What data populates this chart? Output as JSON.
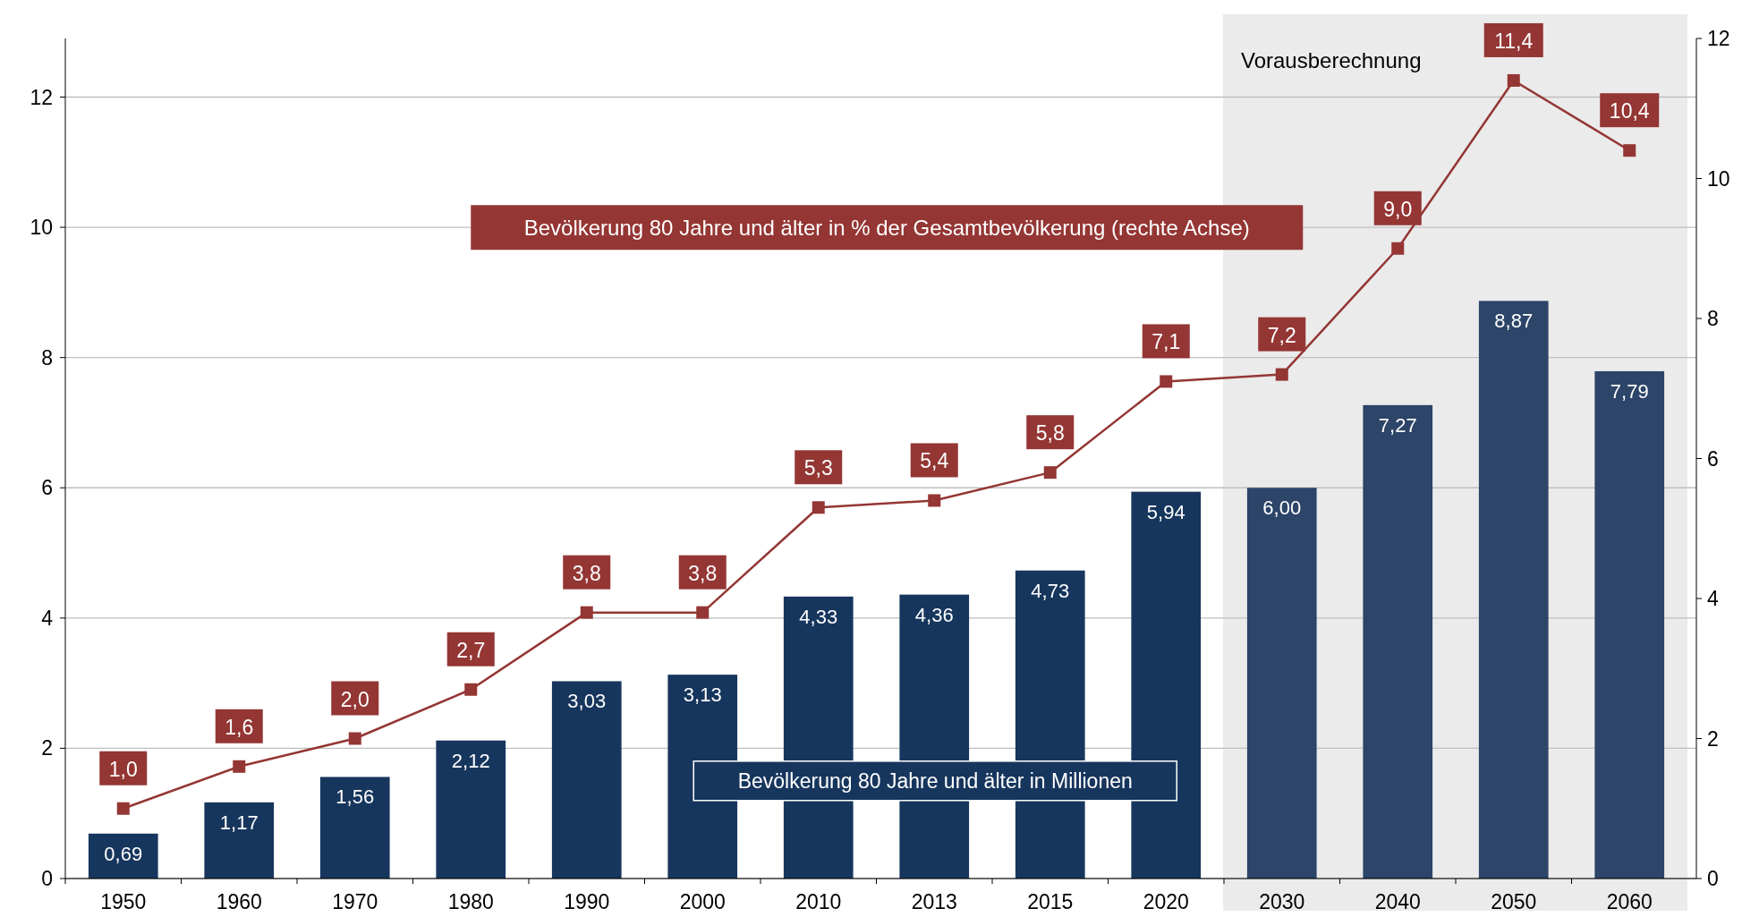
{
  "chart_data": {
    "type": "bar",
    "categories": [
      "1950",
      "1960",
      "1970",
      "1980",
      "1990",
      "2000",
      "2010",
      "2013",
      "2015",
      "2020",
      "2030",
      "2040",
      "2050",
      "2060"
    ],
    "series": [
      {
        "name": "Bevölkerung  80 Jahre und älter in Millionen",
        "colors": [
          "#17365d",
          "#17365d",
          "#17365d",
          "#17365d",
          "#17365d",
          "#17365d",
          "#17365d",
          "#17365d",
          "#17365d",
          "#17365d",
          "#2c4568",
          "#2c4568",
          "#2c4568",
          "#2c4568"
        ],
        "values": [
          0.69,
          1.17,
          1.56,
          2.12,
          3.03,
          3.13,
          4.33,
          4.36,
          4.73,
          5.94,
          6.0,
          7.27,
          8.87,
          7.79
        ],
        "value_labels": [
          "0,69",
          "1,17",
          "1,56",
          "2,12",
          "3,03",
          "3,13",
          "4,33",
          "4,36",
          "4,73",
          "5,94",
          "6,00",
          "7,27",
          "8,87",
          "7,79"
        ]
      },
      {
        "type": "line",
        "axis": "y2",
        "name": "Bevölkerung  80 Jahre und älter in % der Gesamtbevölkerung (rechte Achse)",
        "color": "#943634",
        "values": [
          1.0,
          1.6,
          2.0,
          2.7,
          3.8,
          3.8,
          5.3,
          5.4,
          5.8,
          7.1,
          7.2,
          9.0,
          11.4,
          10.4
        ],
        "value_labels": [
          "1,0",
          "1,6",
          "2,0",
          "2,7",
          "3,8",
          "3,8",
          "5,3",
          "5,4",
          "5,8",
          "7,1",
          "7,2",
          "9,0",
          "11,4",
          "10,4"
        ]
      }
    ],
    "ylim": [
      0,
      12.9
    ],
    "yticks": [
      0,
      2,
      4,
      6,
      8,
      10,
      12
    ],
    "y2lim": [
      0,
      12
    ],
    "y2ticks": [
      0,
      2,
      4,
      6,
      8,
      10,
      12
    ],
    "bands": [
      {
        "axis": "x",
        "from": "2030",
        "to": "2060",
        "label": "Vorausberechnung",
        "color": "#ebebeb"
      }
    ],
    "grid": "y",
    "legend": false,
    "marker": "square",
    "line_style": "solid"
  }
}
